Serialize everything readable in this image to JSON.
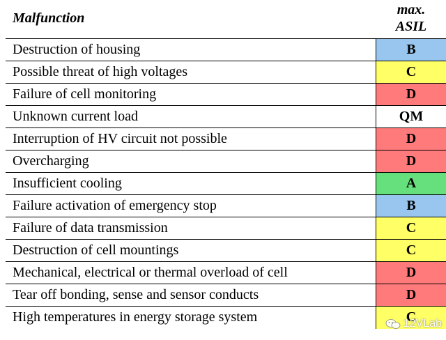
{
  "header": {
    "malfunction_label": "Malfunction",
    "asil_label_line1": "max.",
    "asil_label_line2": "ASIL"
  },
  "asil_colors": {
    "A": "#66e07c",
    "B": "#99c6ee",
    "C": "#ffff66",
    "D": "#ff7a7a",
    "QM": "#ffffff"
  },
  "rows": [
    {
      "malfunction": "Destruction of housing",
      "asil": "B"
    },
    {
      "malfunction": "Possible threat of high voltages",
      "asil": "C"
    },
    {
      "malfunction": "Failure of cell monitoring",
      "asil": "D"
    },
    {
      "malfunction": "Unknown current load",
      "asil": "QM"
    },
    {
      "malfunction": "Interruption of HV circuit not possible",
      "asil": "D"
    },
    {
      "malfunction": "Overcharging",
      "asil": "D"
    },
    {
      "malfunction": "Insufficient cooling",
      "asil": "A"
    },
    {
      "malfunction": "Failure activation of emergency stop",
      "asil": "B"
    },
    {
      "malfunction": "Failure of data transmission",
      "asil": "C"
    },
    {
      "malfunction": "Destruction of cell mountings",
      "asil": "C"
    },
    {
      "malfunction": "Mechanical, electrical or thermal overload of cell",
      "asil": "D"
    },
    {
      "malfunction": "Tear off bonding, sense and sensor conducts",
      "asil": "D"
    },
    {
      "malfunction": "High temperatures in energy storage system",
      "asil": "C"
    }
  ],
  "watermark": {
    "text": "12VLab",
    "icon": "wechat-icon"
  }
}
